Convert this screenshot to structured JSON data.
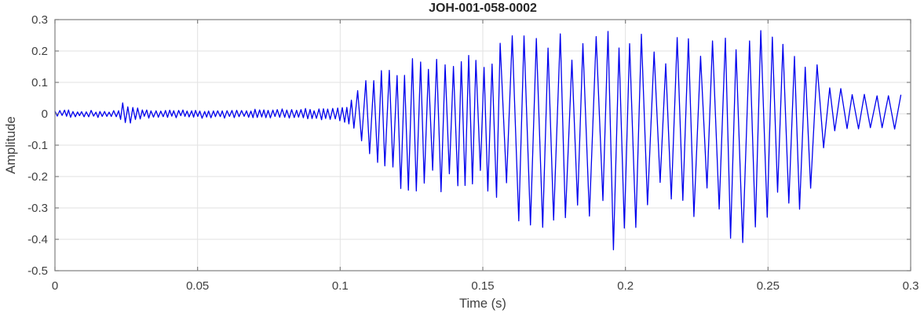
{
  "chart_data": {
    "type": "line",
    "title": "JOH-001-058-0002",
    "xlabel": "Time (s)",
    "ylabel": "Amplitude",
    "xlim": [
      0,
      0.3
    ],
    "ylim": [
      -0.5,
      0.3
    ],
    "grid": true,
    "legend": "none",
    "xticks": {
      "values": [
        0,
        0.05,
        0.1,
        0.15,
        0.2,
        0.25,
        0.3
      ],
      "labels": [
        "0",
        "0.05",
        "0.1",
        "0.15",
        "0.2",
        "0.25",
        "0.3"
      ]
    },
    "yticks": {
      "values": [
        0.3,
        0.2,
        0.1,
        0,
        -0.1,
        -0.2,
        -0.3,
        -0.4,
        -0.5
      ],
      "labels": [
        "0.3",
        "0.2",
        "0.1",
        "0",
        "-0.1",
        "-0.2",
        "-0.3",
        "-0.4",
        "-0.5"
      ]
    },
    "colors": {
      "line": "#0000ee",
      "grid": "#e2e2e2",
      "axis": "#7f7f7f",
      "tick_label": "#404040",
      "title": "#262626",
      "background": "#ffffff"
    },
    "series": [
      {
        "name": "JOH-001-058-0002",
        "representation": "amplitude-envelope",
        "t_start": 0.0,
        "t_end": 0.298,
        "envelope_points_t_lo_hi": [
          [
            0.0,
            -0.01,
            0.01
          ],
          [
            0.02,
            -0.011,
            0.011
          ],
          [
            0.0225,
            -0.012,
            0.012
          ],
          [
            0.024,
            -0.03,
            0.042
          ],
          [
            0.0255,
            -0.038,
            0.028
          ],
          [
            0.028,
            -0.02,
            0.02
          ],
          [
            0.032,
            -0.013,
            0.013
          ],
          [
            0.05,
            -0.012,
            0.012
          ],
          [
            0.07,
            -0.013,
            0.013
          ],
          [
            0.085,
            -0.016,
            0.016
          ],
          [
            0.098,
            -0.018,
            0.018
          ],
          [
            0.1025,
            -0.035,
            0.035
          ],
          [
            0.105,
            -0.06,
            0.07
          ],
          [
            0.108,
            -0.1,
            0.105
          ],
          [
            0.112,
            -0.18,
            0.13
          ],
          [
            0.118,
            -0.23,
            0.16
          ],
          [
            0.125,
            -0.26,
            0.185
          ],
          [
            0.135,
            -0.27,
            0.195
          ],
          [
            0.143,
            -0.25,
            0.19
          ],
          [
            0.15,
            -0.24,
            0.18
          ],
          [
            0.155,
            -0.3,
            0.22
          ],
          [
            0.16,
            -0.33,
            0.26
          ],
          [
            0.165,
            -0.36,
            0.29
          ],
          [
            0.17,
            -0.39,
            0.3
          ],
          [
            0.175,
            -0.4,
            0.295
          ],
          [
            0.18,
            -0.37,
            0.27
          ],
          [
            0.185,
            -0.39,
            0.28
          ],
          [
            0.19,
            -0.44,
            0.285
          ],
          [
            0.194,
            -0.47,
            0.28
          ],
          [
            0.198,
            -0.44,
            0.275
          ],
          [
            0.203,
            -0.38,
            0.26
          ],
          [
            0.208,
            -0.34,
            0.25
          ],
          [
            0.213,
            -0.31,
            0.24
          ],
          [
            0.218,
            -0.31,
            0.25
          ],
          [
            0.223,
            -0.34,
            0.26
          ],
          [
            0.228,
            -0.37,
            0.26
          ],
          [
            0.233,
            -0.4,
            0.27
          ],
          [
            0.238,
            -0.43,
            0.285
          ],
          [
            0.243,
            -0.425,
            0.27
          ],
          [
            0.248,
            -0.405,
            0.275
          ],
          [
            0.253,
            -0.385,
            0.295
          ],
          [
            0.257,
            -0.37,
            0.285
          ],
          [
            0.261,
            -0.34,
            0.26
          ],
          [
            0.265,
            -0.26,
            0.21
          ],
          [
            0.268,
            -0.15,
            0.15
          ],
          [
            0.271,
            -0.08,
            0.095
          ],
          [
            0.276,
            -0.065,
            0.085
          ],
          [
            0.281,
            -0.07,
            0.08
          ],
          [
            0.286,
            -0.06,
            0.08
          ],
          [
            0.291,
            -0.055,
            0.075
          ],
          [
            0.295,
            -0.06,
            0.07
          ],
          [
            0.298,
            -0.045,
            0.06
          ]
        ],
        "oscillation_period_segments_t_period": [
          [
            0.0,
            0.0016
          ],
          [
            0.104,
            0.0028
          ],
          [
            0.155,
            0.0042
          ],
          [
            0.268,
            0.0041
          ]
        ]
      }
    ]
  }
}
